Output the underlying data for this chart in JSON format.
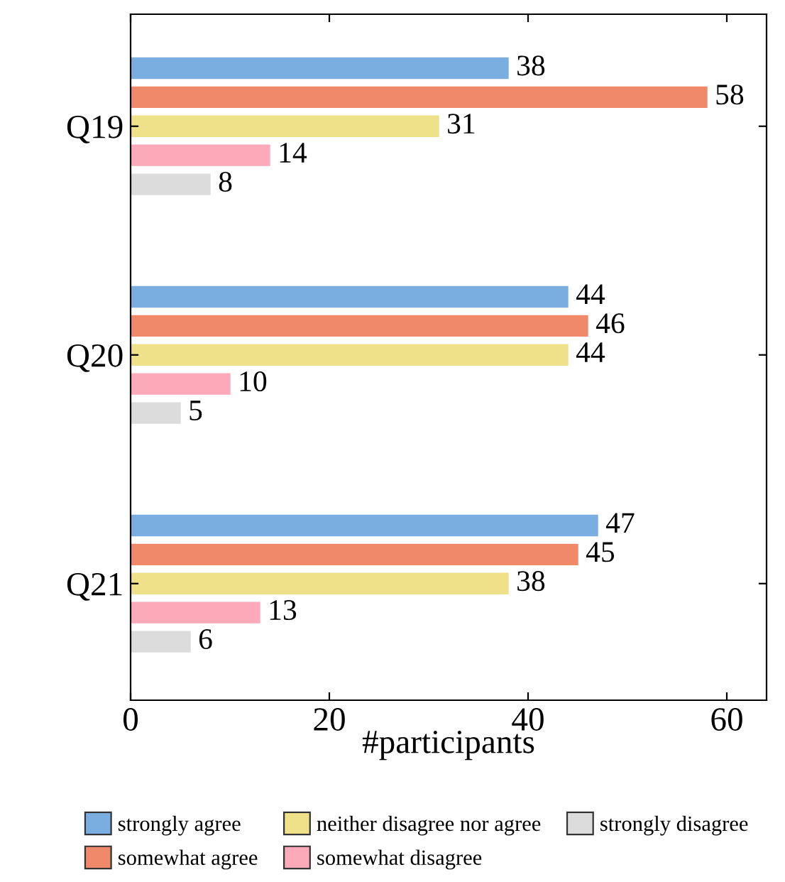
{
  "chart_data": {
    "type": "bar",
    "orientation": "horizontal",
    "categories": [
      "Q19",
      "Q20",
      "Q21"
    ],
    "series": [
      {
        "name": "strongly agree",
        "color": "#7aaee0",
        "values": [
          38,
          44,
          47
        ]
      },
      {
        "name": "somewhat agree",
        "color": "#f0896a",
        "values": [
          58,
          46,
          45
        ]
      },
      {
        "name": "neither disagree nor agree",
        "color": "#efe08a",
        "values": [
          31,
          44,
          38
        ]
      },
      {
        "name": "somewhat disagree",
        "color": "#fcaaba",
        "values": [
          14,
          10,
          13
        ]
      },
      {
        "name": "strongly disagree",
        "color": "#dcdcdc",
        "values": [
          8,
          5,
          6
        ]
      }
    ],
    "xlabel": "#participants",
    "xlim": [
      0,
      64
    ],
    "xticks": [
      0,
      20,
      40,
      60
    ],
    "data_labels": true,
    "legend": "bottom",
    "grid": false
  }
}
